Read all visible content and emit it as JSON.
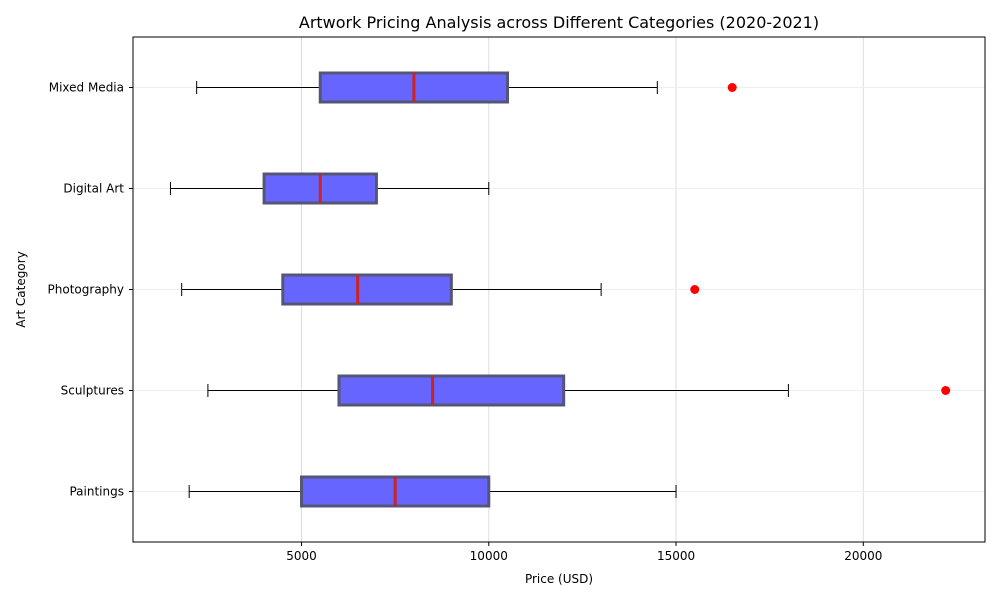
{
  "chart_data": {
    "type": "boxplot",
    "orientation": "horizontal",
    "title": "Artwork Pricing Analysis across Different Categories (2020-2021)",
    "xlabel": "Price (USD)",
    "ylabel": "Art Category",
    "xlim": [
      500,
      23250
    ],
    "xticks": [
      5000,
      10000,
      15000,
      20000
    ],
    "grid": true,
    "colors": {
      "box_fill": "#6666ff",
      "box_edge": "#555577",
      "median": "#cc2222",
      "outlier": "#ff0000",
      "whisker": "#000000"
    },
    "series": [
      {
        "category": "Paintings",
        "min": 2000,
        "q1": 5000,
        "median": 7500,
        "q3": 10000,
        "max": 15000,
        "outliers": []
      },
      {
        "category": "Sculptures",
        "min": 2500,
        "q1": 6000,
        "median": 8500,
        "q3": 12000,
        "max": 18000,
        "outliers": [
          22200
        ]
      },
      {
        "category": "Photography",
        "min": 1800,
        "q1": 4500,
        "median": 6500,
        "q3": 9000,
        "max": 13000,
        "outliers": [
          15500
        ]
      },
      {
        "category": "Digital Art",
        "min": 1500,
        "q1": 4000,
        "median": 5500,
        "q3": 7000,
        "max": 10000,
        "outliers": []
      },
      {
        "category": "Mixed Media",
        "min": 2200,
        "q1": 5500,
        "median": 8000,
        "q3": 10500,
        "max": 14500,
        "outliers": [
          16500
        ]
      }
    ]
  }
}
